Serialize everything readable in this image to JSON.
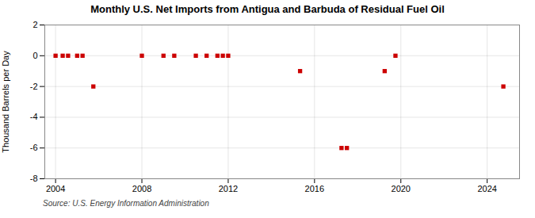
{
  "chart_data": {
    "type": "scatter",
    "title": "Monthly U.S. Net Imports from Antigua and Barbuda of Residual Fuel Oil",
    "ylabel": "Thousand Barrels per Day",
    "source": "Source: U.S. Energy Information Administration",
    "color": "#cc0000",
    "marker": "square",
    "grid": true,
    "xlim": [
      2003.5,
      2025.5
    ],
    "ylim": [
      -8,
      2
    ],
    "xticks": [
      2004,
      2008,
      2012,
      2016,
      2020,
      2024
    ],
    "yticks": [
      2,
      0,
      -2,
      -4,
      -6,
      -8
    ],
    "x": [
      2004.0,
      2004.33,
      2004.58,
      2005.0,
      2005.25,
      2005.75,
      2008.0,
      2009.0,
      2009.5,
      2010.5,
      2011.0,
      2011.5,
      2011.75,
      2012.0,
      2015.33,
      2017.25,
      2017.5,
      2019.25,
      2019.75,
      2024.75
    ],
    "values": [
      0,
      0,
      0,
      0,
      0,
      -2,
      0,
      0,
      0,
      0,
      0,
      0,
      0,
      0,
      -1,
      -6,
      -6,
      -1,
      0,
      -2
    ]
  }
}
